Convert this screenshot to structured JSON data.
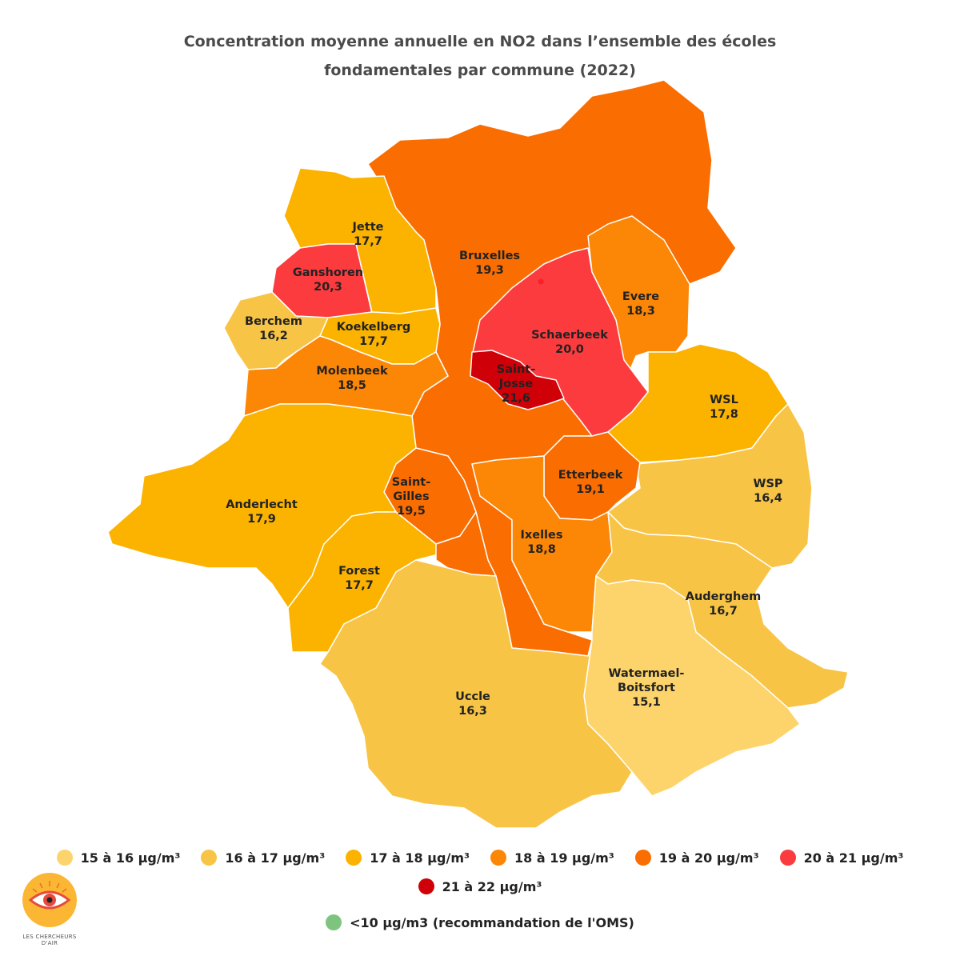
{
  "title": {
    "line1": "Concentration moyenne annuelle en NO2 dans l’ensemble des écoles",
    "line2": "fondamentales par commune (2022)"
  },
  "colors": {
    "c15_16": "#fdd46b",
    "c16_17": "#f7c446",
    "c17_18": "#fbb300",
    "c18_19": "#fc8605",
    "c19_20": "#fa6d00",
    "c20_21": "#fb3b3e",
    "c21_22": "#cf0007",
    "oms": "#7fc47e"
  },
  "communes": {
    "bruxelles": {
      "name": "Bruxelles",
      "value": "19,3"
    },
    "jette": {
      "name": "Jette",
      "value": "17,7"
    },
    "ganshoren": {
      "name": "Ganshoren",
      "value": "20,3"
    },
    "berchem": {
      "name": "Berchem",
      "value": "16,2"
    },
    "koekelberg": {
      "name": "Koekelberg",
      "value": "17,7"
    },
    "molenbeek": {
      "name": "Molenbeek",
      "value": "18,5"
    },
    "evere": {
      "name": "Evere",
      "value": "18,3"
    },
    "schaerbeek": {
      "name": "Schaerbeek",
      "value": "20,0"
    },
    "saint_josse": {
      "name_line1": "Saint-",
      "name_line2": "Josse",
      "value": "21,6"
    },
    "wsl": {
      "name": "WSL",
      "value": "17,8"
    },
    "wsp": {
      "name": "WSP",
      "value": "16,4"
    },
    "anderlecht": {
      "name": "Anderlecht",
      "value": "17,9"
    },
    "saint_gilles": {
      "name_line1": "Saint-",
      "name_line2": "Gilles",
      "value": "19,5"
    },
    "etterbeek": {
      "name": "Etterbeek",
      "value": "19,1"
    },
    "ixelles": {
      "name": "Ixelles",
      "value": "18,8"
    },
    "forest": {
      "name": "Forest",
      "value": "17,7"
    },
    "auderghem": {
      "name": "Auderghem",
      "value": "16,7"
    },
    "uccle": {
      "name": "Uccle",
      "value": "16,3"
    },
    "watermael": {
      "name_line1": "Watermael-",
      "name_line2": "Boitsfort",
      "value": "15,1"
    }
  },
  "legend": {
    "row1": [
      "15 à 16 µg/m³",
      "16 à 17 µg/m³",
      "17 à 18 µg/m³",
      "18 à 19 µg/m³",
      "19 à 20 µg/m³",
      "20 à 21 µg/m³"
    ],
    "row2": [
      "21 à 22 µg/m³"
    ],
    "oms": "<10 µg/m3 (recommandation de l'OMS)"
  },
  "logo": {
    "text": "LES CHERCHEURS D'AIR"
  }
}
